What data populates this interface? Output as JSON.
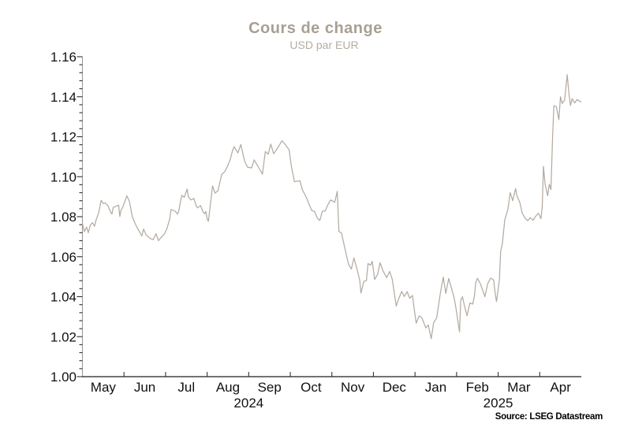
{
  "chart_data": {
    "type": "line",
    "title": "Cours de change",
    "subtitle": "USD par EUR",
    "source": "Source: LSEG Datastream",
    "colors": {
      "title": "#a8a094",
      "subtitle": "#b4ac9f",
      "line": "#b4aba2",
      "y_axis": "#9a9a9a",
      "x_axis": "#444444",
      "tick": "#333333",
      "label": "#111111",
      "source": "#000000"
    },
    "y_axis": {
      "min": 1.0,
      "max": 1.16,
      "major_step": 0.02,
      "minor_step": 0.004,
      "tick_labels": [
        "1.00",
        "1.02",
        "1.04",
        "1.06",
        "1.08",
        "1.10",
        "1.12",
        "1.14",
        "1.16"
      ]
    },
    "x_axis": {
      "months": [
        "May",
        "Jun",
        "Jul",
        "Aug",
        "Sep",
        "Oct",
        "Nov",
        "Dec",
        "Jan",
        "Feb",
        "Mar",
        "Apr"
      ],
      "years": [
        {
          "label": "2024",
          "center_mf": 4
        },
        {
          "label": "2025",
          "center_mf": 10
        }
      ]
    },
    "series": [
      {
        "name": "USD par EUR",
        "unit": "USD per EUR",
        "x_unit": "months since 2024-05-01",
        "points": [
          [
            0,
            1.0765
          ],
          [
            0.05,
            1.0725
          ],
          [
            0.1,
            1.0748
          ],
          [
            0.14,
            1.072
          ],
          [
            0.19,
            1.0758
          ],
          [
            0.24,
            1.077
          ],
          [
            0.29,
            1.0752
          ],
          [
            0.33,
            1.0785
          ],
          [
            0.39,
            1.0819
          ],
          [
            0.45,
            1.0882
          ],
          [
            0.5,
            1.0866
          ],
          [
            0.55,
            1.0869
          ],
          [
            0.61,
            1.0856
          ],
          [
            0.68,
            1.0822
          ],
          [
            0.71,
            1.0813
          ],
          [
            0.74,
            1.0846
          ],
          [
            0.87,
            1.0858
          ],
          [
            0.9,
            1.0801
          ],
          [
            0.93,
            1.0833
          ],
          [
            0.97,
            1.0848
          ],
          [
            1.07,
            1.0904
          ],
          [
            1.13,
            1.0876
          ],
          [
            1.2,
            1.08
          ],
          [
            1.27,
            1.0765
          ],
          [
            1.33,
            1.074
          ],
          [
            1.43,
            1.0704
          ],
          [
            1.47,
            1.0738
          ],
          [
            1.53,
            1.071
          ],
          [
            1.63,
            1.0691
          ],
          [
            1.7,
            1.0685
          ],
          [
            1.77,
            1.0715
          ],
          [
            1.83,
            1.068
          ],
          [
            1.9,
            1.0698
          ],
          [
            1.97,
            1.0713
          ],
          [
            2.03,
            1.0739
          ],
          [
            2.1,
            1.0789
          ],
          [
            2.13,
            1.0836
          ],
          [
            2.23,
            1.0828
          ],
          [
            2.29,
            1.0813
          ],
          [
            2.32,
            1.083
          ],
          [
            2.35,
            1.0867
          ],
          [
            2.39,
            1.0907
          ],
          [
            2.45,
            1.0897
          ],
          [
            2.52,
            1.0938
          ],
          [
            2.55,
            1.0898
          ],
          [
            2.61,
            1.0884
          ],
          [
            2.68,
            1.0891
          ],
          [
            2.74,
            1.0853
          ],
          [
            2.77,
            1.0844
          ],
          [
            2.84,
            1.0856
          ],
          [
            2.9,
            1.0824
          ],
          [
            2.94,
            1.0815
          ],
          [
            2.97,
            1.0826
          ],
          [
            3,
            1.0789
          ],
          [
            3.03,
            1.0777
          ],
          [
            3.13,
            1.0954
          ],
          [
            3.19,
            1.0918
          ],
          [
            3.26,
            1.093
          ],
          [
            3.35,
            1.1011
          ],
          [
            3.42,
            1.1025
          ],
          [
            3.48,
            1.1047
          ],
          [
            3.55,
            1.1083
          ],
          [
            3.61,
            1.113
          ],
          [
            3.65,
            1.115
          ],
          [
            3.74,
            1.1119
          ],
          [
            3.81,
            1.1161
          ],
          [
            3.9,
            1.1078
          ],
          [
            3.97,
            1.1048
          ],
          [
            4.07,
            1.1044
          ],
          [
            4.13,
            1.1084
          ],
          [
            4.23,
            1.1049
          ],
          [
            4.33,
            1.1013
          ],
          [
            4.4,
            1.1126
          ],
          [
            4.47,
            1.1113
          ],
          [
            4.53,
            1.1163
          ],
          [
            4.6,
            1.1115
          ],
          [
            4.7,
            1.1145
          ],
          [
            4.8,
            1.118
          ],
          [
            4.87,
            1.1163
          ],
          [
            4.97,
            1.1135
          ],
          [
            5.03,
            1.1048
          ],
          [
            5.1,
            1.0975
          ],
          [
            5.16,
            1.0977
          ],
          [
            5.23,
            1.098
          ],
          [
            5.29,
            1.0935
          ],
          [
            5.39,
            1.0895
          ],
          [
            5.45,
            1.0862
          ],
          [
            5.52,
            1.083
          ],
          [
            5.58,
            1.0827
          ],
          [
            5.65,
            1.0793
          ],
          [
            5.71,
            1.0781
          ],
          [
            5.77,
            1.0827
          ],
          [
            5.84,
            1.0829
          ],
          [
            5.9,
            1.0858
          ],
          [
            5.97,
            1.0884
          ],
          [
            6.07,
            1.0872
          ],
          [
            6.13,
            1.0927
          ],
          [
            6.17,
            1.0726
          ],
          [
            6.23,
            1.0719
          ],
          [
            6.3,
            1.0653
          ],
          [
            6.4,
            1.0563
          ],
          [
            6.47,
            1.0538
          ],
          [
            6.53,
            1.0594
          ],
          [
            6.6,
            1.0541
          ],
          [
            6.67,
            1.0482
          ],
          [
            6.7,
            1.0418
          ],
          [
            6.77,
            1.0477
          ],
          [
            6.83,
            1.048
          ],
          [
            6.87,
            1.0566
          ],
          [
            6.93,
            1.0557
          ],
          [
            6.97,
            1.0577
          ],
          [
            7.03,
            1.0486
          ],
          [
            7.1,
            1.0511
          ],
          [
            7.16,
            1.057
          ],
          [
            7.23,
            1.0529
          ],
          [
            7.32,
            1.0495
          ],
          [
            7.39,
            1.0526
          ],
          [
            7.45,
            1.0489
          ],
          [
            7.55,
            1.0353
          ],
          [
            7.61,
            1.0391
          ],
          [
            7.68,
            1.0426
          ],
          [
            7.74,
            1.0401
          ],
          [
            7.81,
            1.0425
          ],
          [
            7.87,
            1.0392
          ],
          [
            7.94,
            1.0406
          ],
          [
            7.97,
            1.0354
          ],
          [
            8.03,
            1.0267
          ],
          [
            8.1,
            1.0304
          ],
          [
            8.16,
            1.0296
          ],
          [
            8.26,
            1.0244
          ],
          [
            8.32,
            1.0258
          ],
          [
            8.39,
            1.019
          ],
          [
            8.45,
            1.0272
          ],
          [
            8.52,
            1.0293
          ],
          [
            8.61,
            1.0418
          ],
          [
            8.68,
            1.0498
          ],
          [
            8.74,
            1.0416
          ],
          [
            8.81,
            1.0491
          ],
          [
            8.87,
            1.0448
          ],
          [
            8.94,
            1.0395
          ],
          [
            8.97,
            1.0362
          ],
          [
            9.07,
            1.0224
          ],
          [
            9.1,
            1.038
          ],
          [
            9.14,
            1.04
          ],
          [
            9.18,
            1.0362
          ],
          [
            9.25,
            1.0305
          ],
          [
            9.32,
            1.0368
          ],
          [
            9.39,
            1.0363
          ],
          [
            9.43,
            1.0404
          ],
          [
            9.46,
            1.0468
          ],
          [
            9.5,
            1.0492
          ],
          [
            9.57,
            1.0466
          ],
          [
            9.64,
            1.0425
          ],
          [
            9.68,
            1.04
          ],
          [
            9.75,
            1.0466
          ],
          [
            9.82,
            1.0493
          ],
          [
            9.89,
            1.0484
          ],
          [
            9.93,
            1.0413
          ],
          [
            9.96,
            1.0375
          ],
          [
            10.03,
            1.0486
          ],
          [
            10.06,
            1.0625
          ],
          [
            10.1,
            1.0665
          ],
          [
            10.16,
            1.0785
          ],
          [
            10.23,
            1.0833
          ],
          [
            10.29,
            1.092
          ],
          [
            10.35,
            1.088
          ],
          [
            10.42,
            1.0941
          ],
          [
            10.45,
            1.0905
          ],
          [
            10.52,
            1.0872
          ],
          [
            10.58,
            1.0816
          ],
          [
            10.65,
            1.0793
          ],
          [
            10.71,
            1.078
          ],
          [
            10.77,
            1.0795
          ],
          [
            10.84,
            1.0782
          ],
          [
            10.9,
            1.0802
          ],
          [
            10.97,
            1.0817
          ],
          [
            11.03,
            1.079
          ],
          [
            11.06,
            1.0854
          ],
          [
            11.09,
            1.1052
          ],
          [
            11.13,
            1.0962
          ],
          [
            11.19,
            1.0905
          ],
          [
            11.23,
            1.0962
          ],
          [
            11.27,
            1.0936
          ],
          [
            11.31,
            1.12
          ],
          [
            11.34,
            1.1355
          ],
          [
            11.4,
            1.135
          ],
          [
            11.46,
            1.1285
          ],
          [
            11.5,
            1.14
          ],
          [
            11.54,
            1.1366
          ],
          [
            11.6,
            1.1385
          ],
          [
            11.66,
            1.151
          ],
          [
            11.7,
            1.142
          ],
          [
            11.74,
            1.1356
          ],
          [
            11.78,
            1.139
          ],
          [
            11.84,
            1.1369
          ],
          [
            11.9,
            1.1386
          ],
          [
            11.99,
            1.1374
          ]
        ]
      }
    ]
  }
}
